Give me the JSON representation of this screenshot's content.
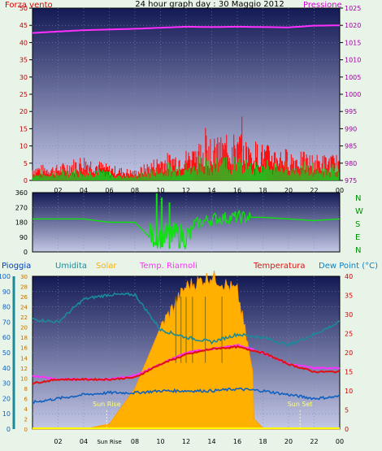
{
  "title": "24 hour graph day : 30 Maggio 2012",
  "top": {
    "left_label": "Forza vento",
    "right_label": "Pressione",
    "left_ticks": [
      "50",
      "45",
      "40",
      "35",
      "30",
      "25",
      "20",
      "15",
      "10",
      "5",
      "0"
    ],
    "right_ticks": [
      "1025",
      "1020",
      "1015",
      "1010",
      "1005",
      "1000",
      "995",
      "990",
      "985",
      "980",
      "975"
    ]
  },
  "mid": {
    "left_ticks": [
      "360",
      "270",
      "180",
      "90",
      "0"
    ],
    "right_letters": [
      "N",
      "W",
      "S",
      "E",
      "N"
    ]
  },
  "bottom": {
    "labels": {
      "rain": "Pioggia",
      "humidity": "Umidita",
      "solar": "Solar",
      "temp_riarnoli": "Temp. Riarnoli",
      "temperature": "Temperatura",
      "dewpoint": "Dew Point (°C)"
    },
    "rain_ticks": [
      "100",
      "90",
      "80",
      "70",
      "60",
      "50",
      "40",
      "30",
      "20",
      "10",
      "0"
    ],
    "hum_ticks": [
      "30",
      "28",
      "26",
      "24",
      "22",
      "20",
      "18",
      "16",
      "14",
      "12",
      "10",
      "8",
      "6",
      "4",
      "2",
      "0"
    ],
    "temp_ticks": [
      "40",
      "35",
      "30",
      "25",
      "20",
      "15",
      "10",
      "5",
      "0"
    ],
    "sunrise": "Sun Rise",
    "sunset": "Sun Set",
    "x_ticks": [
      "02",
      "04",
      "Sun Rise",
      "08",
      "10",
      "12",
      "14",
      "16",
      "18",
      "20",
      "22",
      "00"
    ]
  },
  "x_ticks": [
    "02",
    "04",
    "06",
    "08",
    "10",
    "12",
    "14",
    "16",
    "18",
    "20",
    "22",
    "00"
  ],
  "colors": {
    "pressure": "#ff30ff",
    "wind_gust": "#ff1010",
    "wind_avg": "#20c020",
    "winddir": "#10e010",
    "humidity": "#1a8a9a",
    "solar": "#ffb000",
    "temp_riarnoli": "#ff30ff",
    "temperature": "#e01010",
    "dewpoint": "#1060c0",
    "rain": "#ffff00"
  },
  "chart_data": [
    {
      "type": "line",
      "title": "24 hour graph day : 30 Maggio 2012",
      "x": [
        "00",
        "02",
        "04",
        "06",
        "08",
        "10",
        "12",
        "14",
        "16",
        "18",
        "20",
        "22",
        "00"
      ],
      "series": [
        {
          "name": "Pressione",
          "values": [
            1017.8,
            1018.2,
            1018.6,
            1018.8,
            1019.0,
            1019.3,
            1019.6,
            1019.5,
            1019.6,
            1019.5,
            1019.4,
            1019.9,
            1020.0
          ]
        },
        {
          "name": "Forza vento",
          "values": [
            3,
            3,
            5,
            3,
            2,
            5,
            6,
            8,
            9,
            7,
            6,
            5,
            5
          ]
        }
      ],
      "ylim_left": [
        0,
        50
      ],
      "ylim_right": [
        975,
        1025
      ]
    },
    {
      "type": "line",
      "x": [
        "00",
        "02",
        "04",
        "06",
        "08",
        "10",
        "12",
        "14",
        "16",
        "18",
        "20",
        "22",
        "00"
      ],
      "series": [
        {
          "name": "Wind direction",
          "values": [
            200,
            200,
            200,
            180,
            180,
            20,
            150,
            200,
            210,
            210,
            200,
            190,
            200
          ]
        }
      ],
      "ylim": [
        0,
        360
      ]
    },
    {
      "type": "area",
      "x": [
        "00",
        "02",
        "04",
        "06",
        "08",
        "10",
        "12",
        "14",
        "16",
        "18",
        "20",
        "22",
        "00"
      ],
      "series": [
        {
          "name": "Solar",
          "values": [
            0,
            0,
            0,
            1,
            8,
            20,
            28,
            30,
            27,
            1,
            0,
            0,
            0
          ]
        },
        {
          "name": "Umidita",
          "values": [
            72,
            70,
            85,
            88,
            88,
            65,
            60,
            57,
            62,
            60,
            55,
            62,
            70
          ]
        },
        {
          "name": "Temp. Riarnoli",
          "values": [
            14,
            13,
            13,
            13,
            14,
            17,
            20,
            21,
            22,
            20,
            17,
            16,
            16
          ]
        },
        {
          "name": "Temperatura",
          "values": [
            12,
            13,
            13,
            13,
            13.5,
            17,
            19.5,
            21,
            21.5,
            20,
            17,
            15,
            15
          ]
        },
        {
          "name": "Dew Point (°C)",
          "values": [
            7,
            8,
            9,
            9.5,
            9.5,
            10,
            10,
            10,
            10.5,
            10,
            9,
            8,
            8.5
          ]
        }
      ],
      "ylim_rain": [
        0,
        100
      ],
      "ylim_solar": [
        0,
        30
      ],
      "ylim_temp": [
        0,
        40
      ]
    }
  ]
}
